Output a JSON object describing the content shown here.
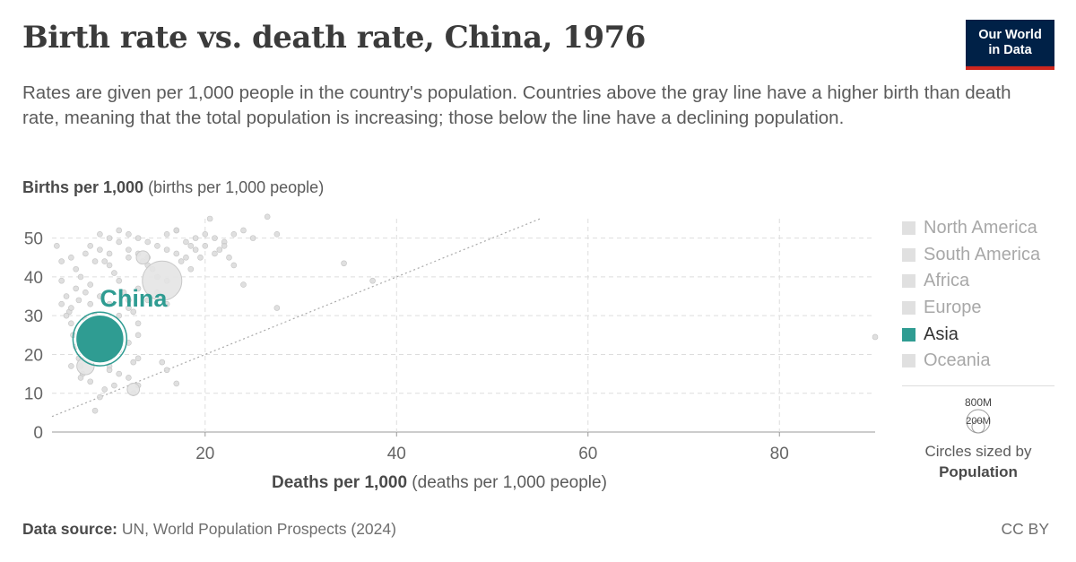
{
  "header": {
    "title": "Birth rate vs. death rate, China, 1976",
    "subtitle": "Rates are given per 1,000 people in the country's population. Countries above the gray line have a higher birth than death rate, meaning that the total population is increasing; those below the line have a declining population.",
    "logo_line1": "Our World",
    "logo_line2": "in Data"
  },
  "axes": {
    "y_label_bold": "Births per 1,000",
    "y_label_rest": " (births per 1,000 people)",
    "x_label_bold": "Deaths per 1,000",
    "x_label_rest": " (deaths per 1,000 people)"
  },
  "legend": {
    "items": [
      "North America",
      "South America",
      "Africa",
      "Europe",
      "Asia",
      "Oceania"
    ],
    "active": "Asia",
    "size_label_large": "800M",
    "size_label_small": "200M",
    "size_note_line1": "Circles sized by",
    "size_note_line2": "Population"
  },
  "footer": {
    "source_bold": "Data source:",
    "source_rest": " UN, World Population Prospects (2024)",
    "license": "CC BY"
  },
  "colors": {
    "highlight": "#2f9c92",
    "background_points": "#d9d9d9",
    "grid": "#dddddd"
  },
  "chart_data": {
    "type": "scatter",
    "title": "Birth rate vs. death rate, China, 1976",
    "xlabel": "Deaths per 1,000",
    "ylabel": "Births per 1,000",
    "xlim": [
      4,
      90
    ],
    "ylim": [
      0,
      55
    ],
    "x_ticks": [
      20,
      40,
      60,
      80
    ],
    "y_ticks": [
      0,
      10,
      20,
      30,
      40,
      50
    ],
    "grid": true,
    "legend_position": "right",
    "reference_line": "births = deaths",
    "highlight": {
      "name": "China",
      "x": 9,
      "y": 24,
      "population_millions": 930
    },
    "points": [
      [
        4.5,
        48
      ],
      [
        5,
        39
      ],
      [
        5.5,
        35
      ],
      [
        5.8,
        31
      ],
      [
        6,
        28
      ],
      [
        6.2,
        25
      ],
      [
        6.5,
        22
      ],
      [
        6.8,
        19
      ],
      [
        7,
        17
      ],
      [
        7.2,
        15
      ],
      [
        5,
        44
      ],
      [
        6,
        45
      ],
      [
        6.5,
        42
      ],
      [
        7,
        40
      ],
      [
        7.5,
        36
      ],
      [
        8,
        33
      ],
      [
        8.5,
        30
      ],
      [
        9,
        27
      ],
      [
        9.5,
        20
      ],
      [
        10,
        17
      ],
      [
        8,
        48
      ],
      [
        9,
        47
      ],
      [
        9.5,
        44
      ],
      [
        10,
        43
      ],
      [
        10.5,
        41
      ],
      [
        11,
        39
      ],
      [
        11.5,
        36
      ],
      [
        12,
        34
      ],
      [
        12.5,
        31
      ],
      [
        13,
        28
      ],
      [
        9,
        51
      ],
      [
        10,
        50
      ],
      [
        11,
        49
      ],
      [
        12,
        47
      ],
      [
        13,
        46
      ],
      [
        13.5,
        44
      ],
      [
        14,
        43
      ],
      [
        14.5,
        42
      ],
      [
        15,
        40
      ],
      [
        16,
        39
      ],
      [
        11,
        52
      ],
      [
        12,
        51
      ],
      [
        13,
        50
      ],
      [
        14,
        49
      ],
      [
        15,
        48
      ],
      [
        16,
        47
      ],
      [
        17,
        46
      ],
      [
        18,
        45
      ],
      [
        19,
        47
      ],
      [
        20,
        48
      ],
      [
        16,
        51
      ],
      [
        17,
        52
      ],
      [
        18,
        49
      ],
      [
        19,
        50
      ],
      [
        20,
        51
      ],
      [
        21,
        50
      ],
      [
        22,
        49
      ],
      [
        23,
        51
      ],
      [
        24,
        52
      ],
      [
        25,
        50
      ],
      [
        20.5,
        55
      ],
      [
        26.5,
        55.5
      ],
      [
        27.5,
        51
      ],
      [
        22,
        48
      ],
      [
        21,
        46
      ],
      [
        23,
        43
      ],
      [
        24,
        38
      ],
      [
        27.5,
        32
      ],
      [
        34.5,
        43.5
      ],
      [
        37.5,
        39
      ],
      [
        15.5,
        18
      ],
      [
        16,
        16
      ],
      [
        17,
        12.5
      ],
      [
        12.5,
        10
      ],
      [
        13,
        12
      ],
      [
        12,
        14
      ],
      [
        11,
        15
      ],
      [
        10,
        16
      ],
      [
        9,
        9
      ],
      [
        8.5,
        5.5
      ],
      [
        13,
        25
      ],
      [
        12,
        23
      ],
      [
        11,
        21
      ],
      [
        13,
        19
      ],
      [
        12.5,
        18
      ],
      [
        6,
        17
      ],
      [
        7,
        14
      ],
      [
        8,
        13
      ],
      [
        9.5,
        11
      ],
      [
        10.5,
        12
      ],
      [
        5.5,
        30
      ],
      [
        6,
        32
      ],
      [
        6.8,
        34
      ],
      [
        7.5,
        29
      ],
      [
        8,
        38
      ],
      [
        9,
        35
      ],
      [
        10,
        33
      ],
      [
        11,
        30
      ],
      [
        12,
        32
      ],
      [
        13,
        37
      ],
      [
        14,
        34
      ],
      [
        15,
        36
      ],
      [
        16,
        33
      ],
      [
        17.5,
        44
      ],
      [
        18.5,
        42
      ],
      [
        19.5,
        45
      ],
      [
        21.5,
        47
      ],
      [
        22.5,
        45
      ],
      [
        8.5,
        44
      ],
      [
        7.5,
        46
      ],
      [
        90,
        24.5
      ],
      [
        17,
        52
      ],
      [
        18.5,
        48
      ],
      [
        14,
        45
      ],
      [
        12,
        45
      ],
      [
        10,
        46
      ],
      [
        6.5,
        37
      ],
      [
        5,
        33
      ],
      [
        7,
        26
      ],
      [
        8,
        21
      ]
    ],
    "large_points": [
      {
        "x": 15.5,
        "y": 39,
        "population_millions": 620
      },
      {
        "x": 7.5,
        "y": 17,
        "population_millions": 120
      },
      {
        "x": 12.5,
        "y": 11,
        "population_millions": 60
      },
      {
        "x": 13.5,
        "y": 45,
        "population_millions": 70
      }
    ]
  }
}
